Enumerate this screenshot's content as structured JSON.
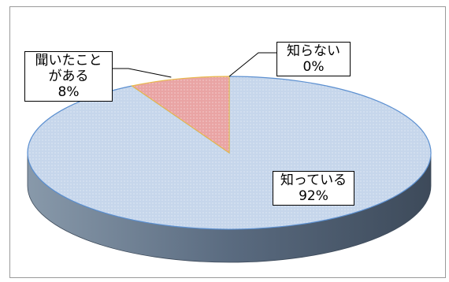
{
  "chart_data": {
    "type": "pie",
    "categories": [
      "知っている",
      "聞いたことがある",
      "知らない"
    ],
    "values": [
      92,
      8,
      0
    ],
    "value_labels": [
      "92%",
      "8%",
      "0%"
    ],
    "label_lines": [
      [
        "知っている"
      ],
      [
        "聞いたこと",
        "がある"
      ],
      [
        "知らない"
      ]
    ],
    "colors": [
      "#c5d5ea",
      "#e6a0a0",
      "#e6a0a0"
    ],
    "edge_colors": [
      "#5b8fd0",
      "#e8b84a",
      "#e8b84a"
    ],
    "side_colors": [
      "#4a5a6e",
      "#8a5a5a",
      "#8a5a5a"
    ],
    "title": "",
    "legend": "none",
    "style": "3d-pie"
  }
}
